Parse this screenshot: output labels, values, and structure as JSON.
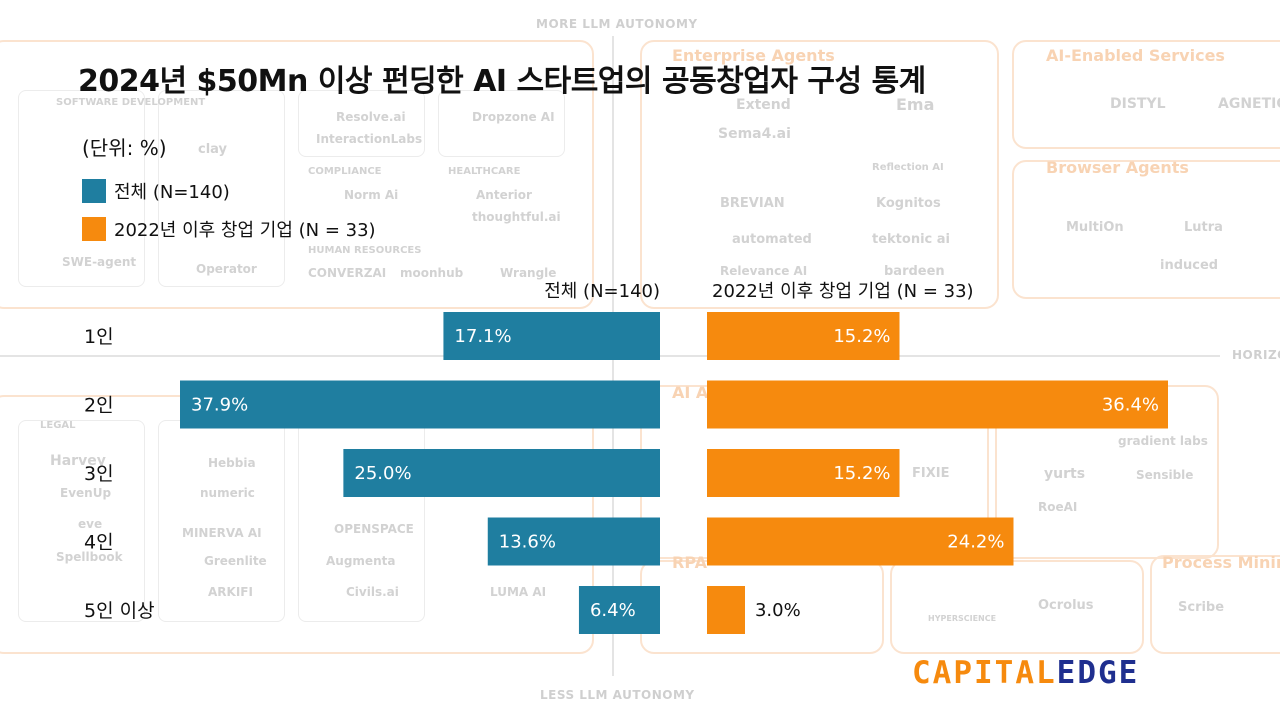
{
  "title": "2024년 $50Mn 이상 펀딩한 AI 스타트업의 공동창업자 구성 통계",
  "unit": "(단위: %)",
  "colors": {
    "total": "#1f7ea0",
    "recent": "#f68a0e",
    "logo_orange": "#f68a0e",
    "logo_blue": "#1f2f8f"
  },
  "logo": {
    "part1": "CAPITAL",
    "part2": "EDGE"
  },
  "background": {
    "axis_top": "MORE LLM AUTONOMY",
    "axis_bottom": "LESS LLM AUTONOMY",
    "axis_right": "HORIZO",
    "headings": [
      "Enterprise Agents",
      "AI-Enabled Services",
      "Browser Agents",
      "Process Mining",
      "AI Agents",
      "RPA"
    ],
    "small_labels": [
      "SOFTWARE DEVELOPMENT",
      "COMPLIANCE",
      "HEALTHCARE",
      "HUMAN RESOURCES",
      "LEGAL"
    ],
    "logos": [
      "Resolve.ai",
      "InteractionLabs",
      "Dropzone AI",
      "Extend",
      "Ema",
      "Sema4.ai",
      "Reflection AI",
      "BREVIAN",
      "Kognitos",
      "automated",
      "tektonic ai",
      "Relevance AI",
      "bardeen",
      "DISTYL",
      "AGNETIC",
      "MultiOn",
      "Lutra",
      "induced",
      "clay",
      "Norm Ai",
      "Anterior",
      "thoughtful.ai",
      "Operator",
      "CONVERZAI",
      "moonhub",
      "Wrangle",
      "SWE-agent",
      "Harvey",
      "EvenUp",
      "eve",
      "Spellbook",
      "Hebbia",
      "numeric",
      "MINERVA AI",
      "Greenlite",
      "ARKIFI",
      "OPENSPACE",
      "Augmenta",
      "Civils.ai",
      "LUMA AI",
      "FIXIE",
      "gradient labs",
      "yurts",
      "Sensible",
      "RoeAI",
      "Ocrolus",
      "HYPERSCIENCE",
      "Scribe"
    ]
  },
  "chart_data": {
    "type": "bar",
    "categories": [
      "1인",
      "2인",
      "3인",
      "4인",
      "5인 이상"
    ],
    "series": [
      {
        "name": "전체 (N=140)",
        "values": [
          17.1,
          37.9,
          25.0,
          13.6,
          6.4
        ]
      },
      {
        "name": "2022년 이후 창업 기업 (N = 33)",
        "values": [
          15.2,
          36.4,
          15.2,
          24.2,
          3.0
        ]
      }
    ],
    "value_labels": [
      [
        "17.1%",
        "37.9%",
        "25.0%",
        "13.6%",
        "6.4%"
      ],
      [
        "15.2%",
        "36.4%",
        "15.2%",
        "24.2%",
        "3.0%"
      ]
    ],
    "orientation": "horizontal-diverging",
    "xlim": [
      0,
      40
    ],
    "legend": "top-left",
    "grid": false
  }
}
